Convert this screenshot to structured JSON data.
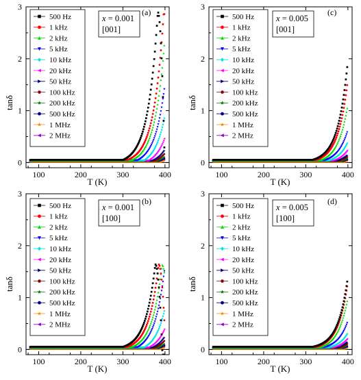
{
  "figure": {
    "y_axis_label": "tanδ",
    "x_axis_label": "T  (K)"
  },
  "legend_entries": [
    {
      "name": "500 Hz",
      "color": "#000000",
      "marker": "square"
    },
    {
      "name": "1 kHz",
      "color": "#ff0000",
      "marker": "circle"
    },
    {
      "name": "2 kHz",
      "color": "#00dd00",
      "marker": "triangle-up"
    },
    {
      "name": "5 kHz",
      "color": "#0000ff",
      "marker": "triangle-down"
    },
    {
      "name": "10 kHz",
      "color": "#00e5e5",
      "marker": "diamond"
    },
    {
      "name": "20 kHz",
      "color": "#ff00ff",
      "marker": "triangle-left"
    },
    {
      "name": "50 kHz",
      "color": "#000080",
      "marker": "triangle-right"
    },
    {
      "name": "100 kHz",
      "color": "#8b0000",
      "marker": "hexagon"
    },
    {
      "name": "200 kHz",
      "color": "#008000",
      "marker": "star"
    },
    {
      "name": "500 kHz",
      "color": "#00008b",
      "marker": "circle"
    },
    {
      "name": "1 MHz",
      "color": "#ff8c00",
      "marker": "star"
    },
    {
      "name": "2 MHz",
      "color": "#9400d3",
      "marker": "triangle-left"
    }
  ],
  "chart_data": [
    {
      "type": "scatter",
      "panel_label": "(a)",
      "annotation": {
        "composition_prefix": "x",
        "composition_value": " = 0.001",
        "orientation": "[001]"
      },
      "xlabel": "T  (K)",
      "ylabel": "tanδ",
      "xlim": [
        70,
        410
      ],
      "ylim": [
        -0.1,
        3
      ],
      "xticks": [
        100,
        200,
        300,
        400
      ],
      "yticks": [
        0,
        1,
        2,
        3
      ],
      "x_range": [
        80,
        400
      ],
      "series": [
        {
          "name": "500 Hz",
          "base": 0.05,
          "onset": 300,
          "k": 0.043,
          "peak_T": 383,
          "peak_val": 2.9,
          "post_slope": -0.022
        },
        {
          "name": "1 kHz",
          "base": 0.05,
          "onset": 310,
          "k": 0.043,
          "peak_T": 397,
          "peak_val": 2.88,
          "post_slope": -0.02
        },
        {
          "name": "2 kHz",
          "base": 0.045,
          "onset": 320,
          "k": 0.043,
          "val_400": 2.42
        },
        {
          "name": "5 kHz",
          "base": 0.045,
          "onset": 335,
          "k": 0.043,
          "val_400": 1.52
        },
        {
          "name": "10 kHz",
          "base": 0.04,
          "onset": 350,
          "k": 0.043,
          "val_400": 0.92
        },
        {
          "name": "20 kHz",
          "base": 0.04,
          "onset": 360,
          "k": 0.043,
          "val_400": 0.5
        },
        {
          "name": "50 kHz",
          "base": 0.035,
          "onset": 370,
          "k": 0.043,
          "val_400": 0.25
        },
        {
          "name": "100 kHz",
          "base": 0.035,
          "onset": 375,
          "k": 0.043,
          "val_400": 0.18
        },
        {
          "name": "200 kHz",
          "base": 0.03,
          "onset": 380,
          "k": 0.043,
          "val_400": 0.12
        },
        {
          "name": "500 kHz",
          "base": 0.03,
          "onset": 385,
          "k": 0.043,
          "val_400": 0.09
        },
        {
          "name": "1 MHz",
          "base": 0.01,
          "onset": 390,
          "k": 0.043,
          "val_400": 0.04
        },
        {
          "name": "2 MHz",
          "base": 0.035,
          "onset": 390,
          "k": 0.043,
          "val_400": 0.06
        }
      ]
    },
    {
      "type": "scatter",
      "panel_label": "(c)",
      "annotation": {
        "composition_prefix": "x",
        "composition_value": " = 0.005",
        "orientation": "[001]"
      },
      "xlabel": "T  (K)",
      "ylabel": "tanδ",
      "xlim": [
        70,
        410
      ],
      "ylim": [
        -0.1,
        3
      ],
      "xticks": [
        100,
        200,
        300,
        400
      ],
      "yticks": [
        0,
        1,
        2,
        3
      ],
      "x_range": [
        80,
        400
      ],
      "series": [
        {
          "name": "500 Hz",
          "base": 0.05,
          "onset": 315,
          "k": 0.043,
          "val_400": 1.97
        },
        {
          "name": "1 kHz",
          "base": 0.05,
          "onset": 325,
          "k": 0.043,
          "val_400": 1.6
        },
        {
          "name": "2 kHz",
          "base": 0.045,
          "onset": 335,
          "k": 0.043,
          "val_400": 1.12
        },
        {
          "name": "5 kHz",
          "base": 0.045,
          "onset": 345,
          "k": 0.043,
          "val_400": 0.63
        },
        {
          "name": "10 kHz",
          "base": 0.04,
          "onset": 355,
          "k": 0.043,
          "val_400": 0.4
        },
        {
          "name": "20 kHz",
          "base": 0.04,
          "onset": 365,
          "k": 0.043,
          "val_400": 0.25
        },
        {
          "name": "50 kHz",
          "base": 0.035,
          "onset": 375,
          "k": 0.043,
          "val_400": 0.15
        },
        {
          "name": "100 kHz",
          "base": 0.035,
          "onset": 380,
          "k": 0.043,
          "val_400": 0.12
        },
        {
          "name": "200 kHz",
          "base": 0.03,
          "onset": 385,
          "k": 0.043,
          "val_400": 0.09
        },
        {
          "name": "500 kHz",
          "base": 0.03,
          "onset": 390,
          "k": 0.043,
          "val_400": 0.07
        },
        {
          "name": "1 MHz",
          "base": 0.01,
          "onset": 392,
          "k": 0.043,
          "val_400": 0.03
        },
        {
          "name": "2 MHz",
          "base": 0.035,
          "onset": 392,
          "k": 0.043,
          "val_400": 0.05
        }
      ]
    },
    {
      "type": "scatter",
      "panel_label": "(b)",
      "annotation": {
        "composition_prefix": "x",
        "composition_value": " = 0.001",
        "orientation": "[100]"
      },
      "xlabel": "T  (K)",
      "ylabel": "tanδ",
      "xlim": [
        70,
        410
      ],
      "ylim": [
        -0.1,
        3
      ],
      "xticks": [
        100,
        200,
        300,
        400
      ],
      "yticks": [
        0,
        1,
        2,
        3
      ],
      "x_range": [
        80,
        400
      ],
      "series": [
        {
          "name": "500 Hz",
          "base": 0.05,
          "onset": 300,
          "k": 0.043,
          "peak_T": 377,
          "peak_val": 1.64,
          "post_slope": -0.012
        },
        {
          "name": "1 kHz",
          "base": 0.05,
          "onset": 310,
          "k": 0.043,
          "peak_T": 385,
          "peak_val": 1.64,
          "post_slope": -0.012
        },
        {
          "name": "2 kHz",
          "base": 0.045,
          "onset": 320,
          "k": 0.043,
          "peak_T": 393,
          "peak_val": 1.63,
          "post_slope": -0.01
        },
        {
          "name": "5 kHz",
          "base": 0.045,
          "onset": 335,
          "k": 0.043,
          "peak_T": 399,
          "peak_val": 1.55,
          "post_slope": -0.01
        },
        {
          "name": "10 kHz",
          "base": 0.04,
          "onset": 350,
          "k": 0.043,
          "val_400": 0.8
        },
        {
          "name": "20 kHz",
          "base": 0.04,
          "onset": 360,
          "k": 0.043,
          "val_400": 0.42
        },
        {
          "name": "50 kHz",
          "base": 0.035,
          "onset": 370,
          "k": 0.043,
          "val_400": 0.25
        },
        {
          "name": "100 kHz",
          "base": 0.035,
          "onset": 375,
          "k": 0.043,
          "val_400": 0.18
        },
        {
          "name": "200 kHz",
          "base": 0.03,
          "onset": 380,
          "k": 0.043,
          "val_400": 0.12
        },
        {
          "name": "500 kHz",
          "base": 0.03,
          "onset": 385,
          "k": 0.043,
          "val_400": 0.09
        },
        {
          "name": "1 MHz",
          "base": 0.01,
          "onset": 390,
          "k": 0.043,
          "val_400": 0.04
        },
        {
          "name": "2 MHz",
          "base": 0.035,
          "onset": 390,
          "k": 0.043,
          "val_400": 0.06
        }
      ]
    },
    {
      "type": "scatter",
      "panel_label": "(d)",
      "annotation": {
        "composition_prefix": "x",
        "composition_value": " = 0.005",
        "orientation": "[100]"
      },
      "xlabel": "T  (K)",
      "ylabel": "tanδ",
      "xlim": [
        70,
        410
      ],
      "ylim": [
        -0.1,
        3
      ],
      "xticks": [
        100,
        200,
        300,
        400
      ],
      "yticks": [
        0,
        1,
        2,
        3
      ],
      "x_range": [
        80,
        400
      ],
      "series": [
        {
          "name": "500 Hz",
          "base": 0.05,
          "onset": 315,
          "k": 0.043,
          "val_400": 1.4
        },
        {
          "name": "1 kHz",
          "base": 0.05,
          "onset": 325,
          "k": 0.043,
          "val_400": 1.3
        },
        {
          "name": "2 kHz",
          "base": 0.045,
          "onset": 335,
          "k": 0.043,
          "val_400": 1.0
        },
        {
          "name": "5 kHz",
          "base": 0.045,
          "onset": 345,
          "k": 0.043,
          "val_400": 0.55
        },
        {
          "name": "10 kHz",
          "base": 0.04,
          "onset": 355,
          "k": 0.043,
          "val_400": 0.32
        },
        {
          "name": "20 kHz",
          "base": 0.04,
          "onset": 365,
          "k": 0.043,
          "val_400": 0.22
        },
        {
          "name": "50 kHz",
          "base": 0.035,
          "onset": 375,
          "k": 0.043,
          "val_400": 0.15
        },
        {
          "name": "100 kHz",
          "base": 0.035,
          "onset": 380,
          "k": 0.043,
          "val_400": 0.12
        },
        {
          "name": "200 kHz",
          "base": 0.03,
          "onset": 385,
          "k": 0.043,
          "val_400": 0.09
        },
        {
          "name": "500 kHz",
          "base": 0.03,
          "onset": 390,
          "k": 0.043,
          "val_400": 0.07
        },
        {
          "name": "1 MHz",
          "base": 0.01,
          "onset": 392,
          "k": 0.043,
          "val_400": 0.03
        },
        {
          "name": "2 MHz",
          "base": 0.035,
          "onset": 392,
          "k": 0.043,
          "val_400": 0.05
        }
      ]
    }
  ]
}
